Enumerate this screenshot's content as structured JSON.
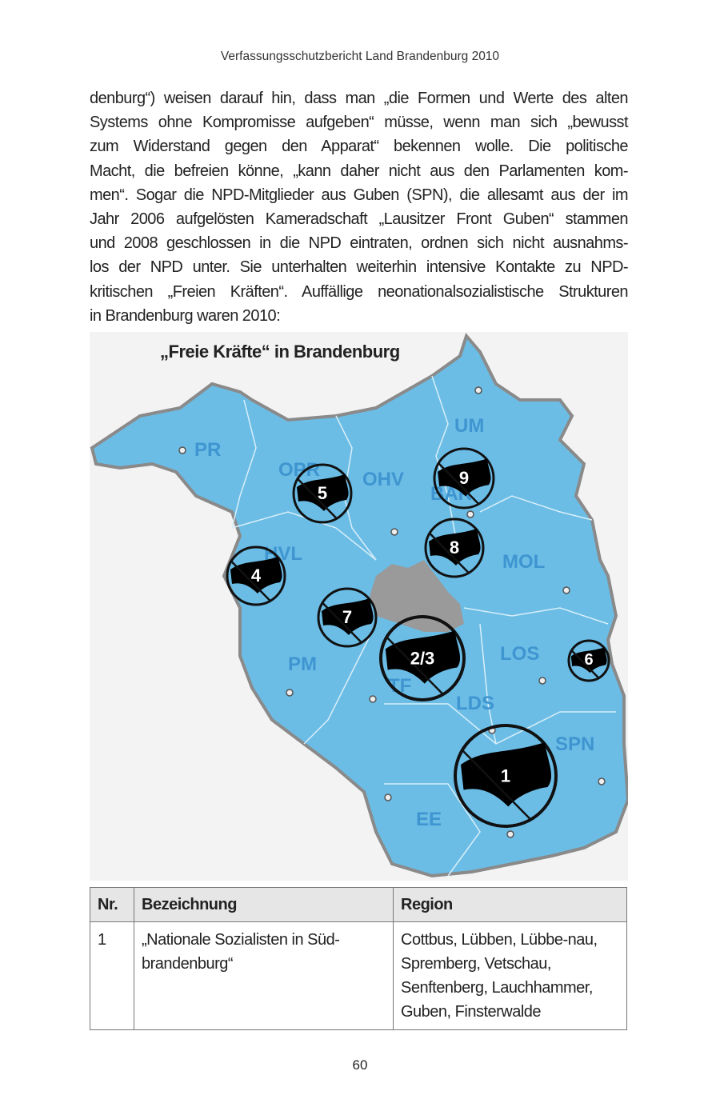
{
  "header": "Verfassungsschutzbericht Land Brandenburg 2010",
  "paragraph_lines": [
    "denburg“) weisen darauf hin, dass man „die Formen und Werte des alten",
    "Systems ohne Kompromisse aufgeben“ müsse, wenn man sich „bewusst",
    "zum Widerstand gegen den Apparat“ bekennen wolle. Die politische",
    "Macht, die befreien könne, „kann daher nicht aus den Parlamenten kom-",
    "men“. Sogar die NPD-Mitglieder aus Guben (SPN), die allesamt aus der im",
    "Jahr 2006 aufgelösten Kameradschaft „Lausitzer Front Guben“ stammen",
    "und 2008 geschlossen in die NPD eintraten, ordnen sich nicht ausnahms-",
    "los der NPD unter. Sie unterhalten weiterhin intensive Kontakte zu NPD-",
    "kritischen „Freien Kräften“. Auffällige neonationalsozialistische Strukturen",
    "in Brandenburg waren 2010:"
  ],
  "map": {
    "title": "„Freie Kräfte“ in Brandenburg",
    "colors": {
      "land": "#6bbde6",
      "border": "#8a8a8a",
      "berlin": "#9a9a9a",
      "label": "#3f95d0"
    },
    "regions": [
      "PR",
      "OPR",
      "OHV",
      "UM",
      "BAR",
      "HVL",
      "MOL",
      "PM",
      "TF",
      "LOS",
      "LDS",
      "SPN",
      "EE"
    ],
    "markers": [
      "1",
      "2/3",
      "4",
      "5",
      "6",
      "7",
      "8",
      "9"
    ]
  },
  "table": {
    "headers": [
      "Nr.",
      "Bezeichnung",
      "Region"
    ],
    "rows": [
      {
        "nr": "1",
        "name": "„Nationale Sozialisten in Süd-brandenburg“",
        "region": "Cottbus, Lübben, Lübbe-nau, Spremberg, Vetschau, Senftenberg, Lauchhammer, Guben, Finsterwalde"
      }
    ]
  },
  "page_number": "60"
}
